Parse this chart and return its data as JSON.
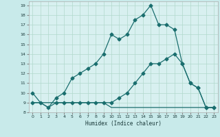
{
  "xlabel": "Humidex (Indice chaleur)",
  "bg_color": "#c8eaea",
  "plot_bg_color": "#d8f0f0",
  "grid_color": "#b0d8cc",
  "line_color": "#1a6e6e",
  "xlim": [
    -0.5,
    23.5
  ],
  "ylim": [
    8,
    19.4
  ],
  "curve1_x": [
    0,
    1,
    2,
    3,
    4,
    5,
    6,
    7,
    8,
    9,
    10,
    11,
    12,
    13,
    14,
    15,
    16,
    17,
    18,
    19,
    20,
    21,
    22,
    23
  ],
  "curve1_y": [
    10,
    9,
    8.5,
    9.5,
    10,
    11.5,
    12,
    12.5,
    13,
    14,
    16,
    15.5,
    16,
    17.5,
    18,
    19,
    17,
    17,
    16.5,
    13,
    11,
    10.5,
    8.5,
    8.5
  ],
  "curve2_x": [
    0,
    3,
    4,
    5,
    6,
    7,
    8,
    9,
    10,
    11,
    12,
    13,
    14,
    15,
    16,
    17,
    18,
    19,
    20,
    21,
    22,
    23
  ],
  "curve2_y": [
    9,
    9,
    9,
    9,
    9,
    9,
    9,
    9,
    9,
    9.5,
    10,
    11,
    12,
    13,
    13,
    13.5,
    14,
    13,
    11,
    10.5,
    8.5,
    8.5
  ],
  "curve3_x": [
    0,
    1,
    2,
    3,
    4,
    5,
    6,
    7,
    8,
    9,
    10,
    11,
    12,
    13,
    14,
    15,
    16,
    17,
    18,
    19,
    20,
    21,
    22,
    23
  ],
  "curve3_y": [
    9,
    9,
    8.5,
    9,
    9,
    9,
    9,
    9,
    9,
    9,
    8.5,
    8.5,
    8.5,
    8.5,
    8.5,
    8.5,
    8.5,
    8.5,
    8.5,
    8.5,
    8.5,
    8.5,
    8.5,
    8.5
  ],
  "yticks": [
    8,
    9,
    10,
    11,
    12,
    13,
    14,
    15,
    16,
    17,
    18,
    19
  ],
  "xticks": [
    0,
    1,
    2,
    3,
    4,
    5,
    6,
    7,
    8,
    9,
    10,
    11,
    12,
    13,
    14,
    15,
    16,
    17,
    18,
    19,
    20,
    21,
    22,
    23
  ]
}
